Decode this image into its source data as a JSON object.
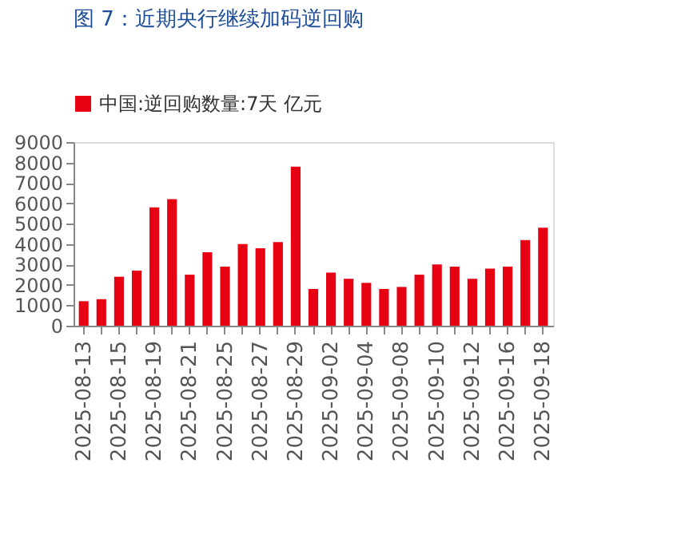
{
  "chart_data": {
    "type": "bar",
    "title": "图 7：近期央行继续加码逆回购",
    "categories": [
      "2025-08-13",
      null,
      "2025-08-15",
      null,
      "2025-08-19",
      null,
      "2025-08-21",
      null,
      "2025-08-25",
      null,
      "2025-08-27",
      null,
      "2025-08-29",
      null,
      "2025-09-02",
      null,
      "2025-09-04",
      null,
      "2025-09-08",
      null,
      "2025-09-10",
      null,
      "2025-09-12",
      null,
      "2025-09-16",
      null,
      "2025-09-18"
    ],
    "series": [
      {
        "name": "中国:逆回购数量:7天 亿元",
        "color": "#e60012",
        "values": [
          1200,
          1300,
          2400,
          2700,
          5800,
          6200,
          2500,
          3600,
          2900,
          4000,
          3800,
          4100,
          7800,
          1800,
          2600,
          2300,
          2100,
          1800,
          1900,
          2500,
          3000,
          2900,
          2300,
          2800,
          2900,
          4200,
          4800
        ]
      }
    ],
    "ylim": [
      0,
      9000
    ],
    "yticks": [
      0,
      1000,
      2000,
      3000,
      4000,
      5000,
      6000,
      7000,
      8000,
      9000
    ],
    "grid": false,
    "legend": "top"
  }
}
